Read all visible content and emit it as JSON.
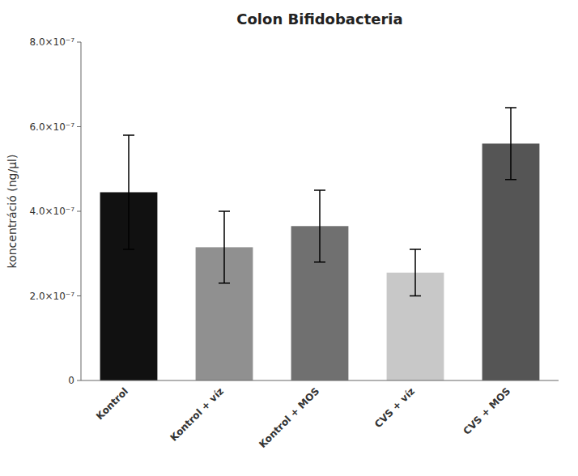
{
  "chart_data": {
    "type": "bar",
    "title": "Colon Bifidobacteria",
    "ylabel": "koncentráció (ng/μl)",
    "categories": [
      "Kontrol",
      "Kontrol + víz",
      "Kontrol + MOS",
      "CVS + víz",
      "CVS + MOS"
    ],
    "values": [
      4.45e-07,
      3.15e-07,
      3.65e-07,
      2.55e-07,
      5.6e-07
    ],
    "errors": [
      1.35e-07,
      8.5e-08,
      8.5e-08,
      5.5e-08,
      8.5e-08
    ],
    "colors": [
      "#111111",
      "#909090",
      "#707070",
      "#c8c8c8",
      "#555555"
    ],
    "ylim": [
      0,
      8e-07
    ],
    "yticks": [
      0,
      {
        "value": 2e-07,
        "label": "2.0×10⁻⁷"
      },
      {
        "value": 4e-07,
        "label": "4.0×10⁻⁷"
      },
      {
        "value": 6e-07,
        "label": "6.0×10⁻⁷"
      },
      {
        "value": 8e-07,
        "label": "8.0×10⁻⁷"
      }
    ],
    "grid": false
  }
}
